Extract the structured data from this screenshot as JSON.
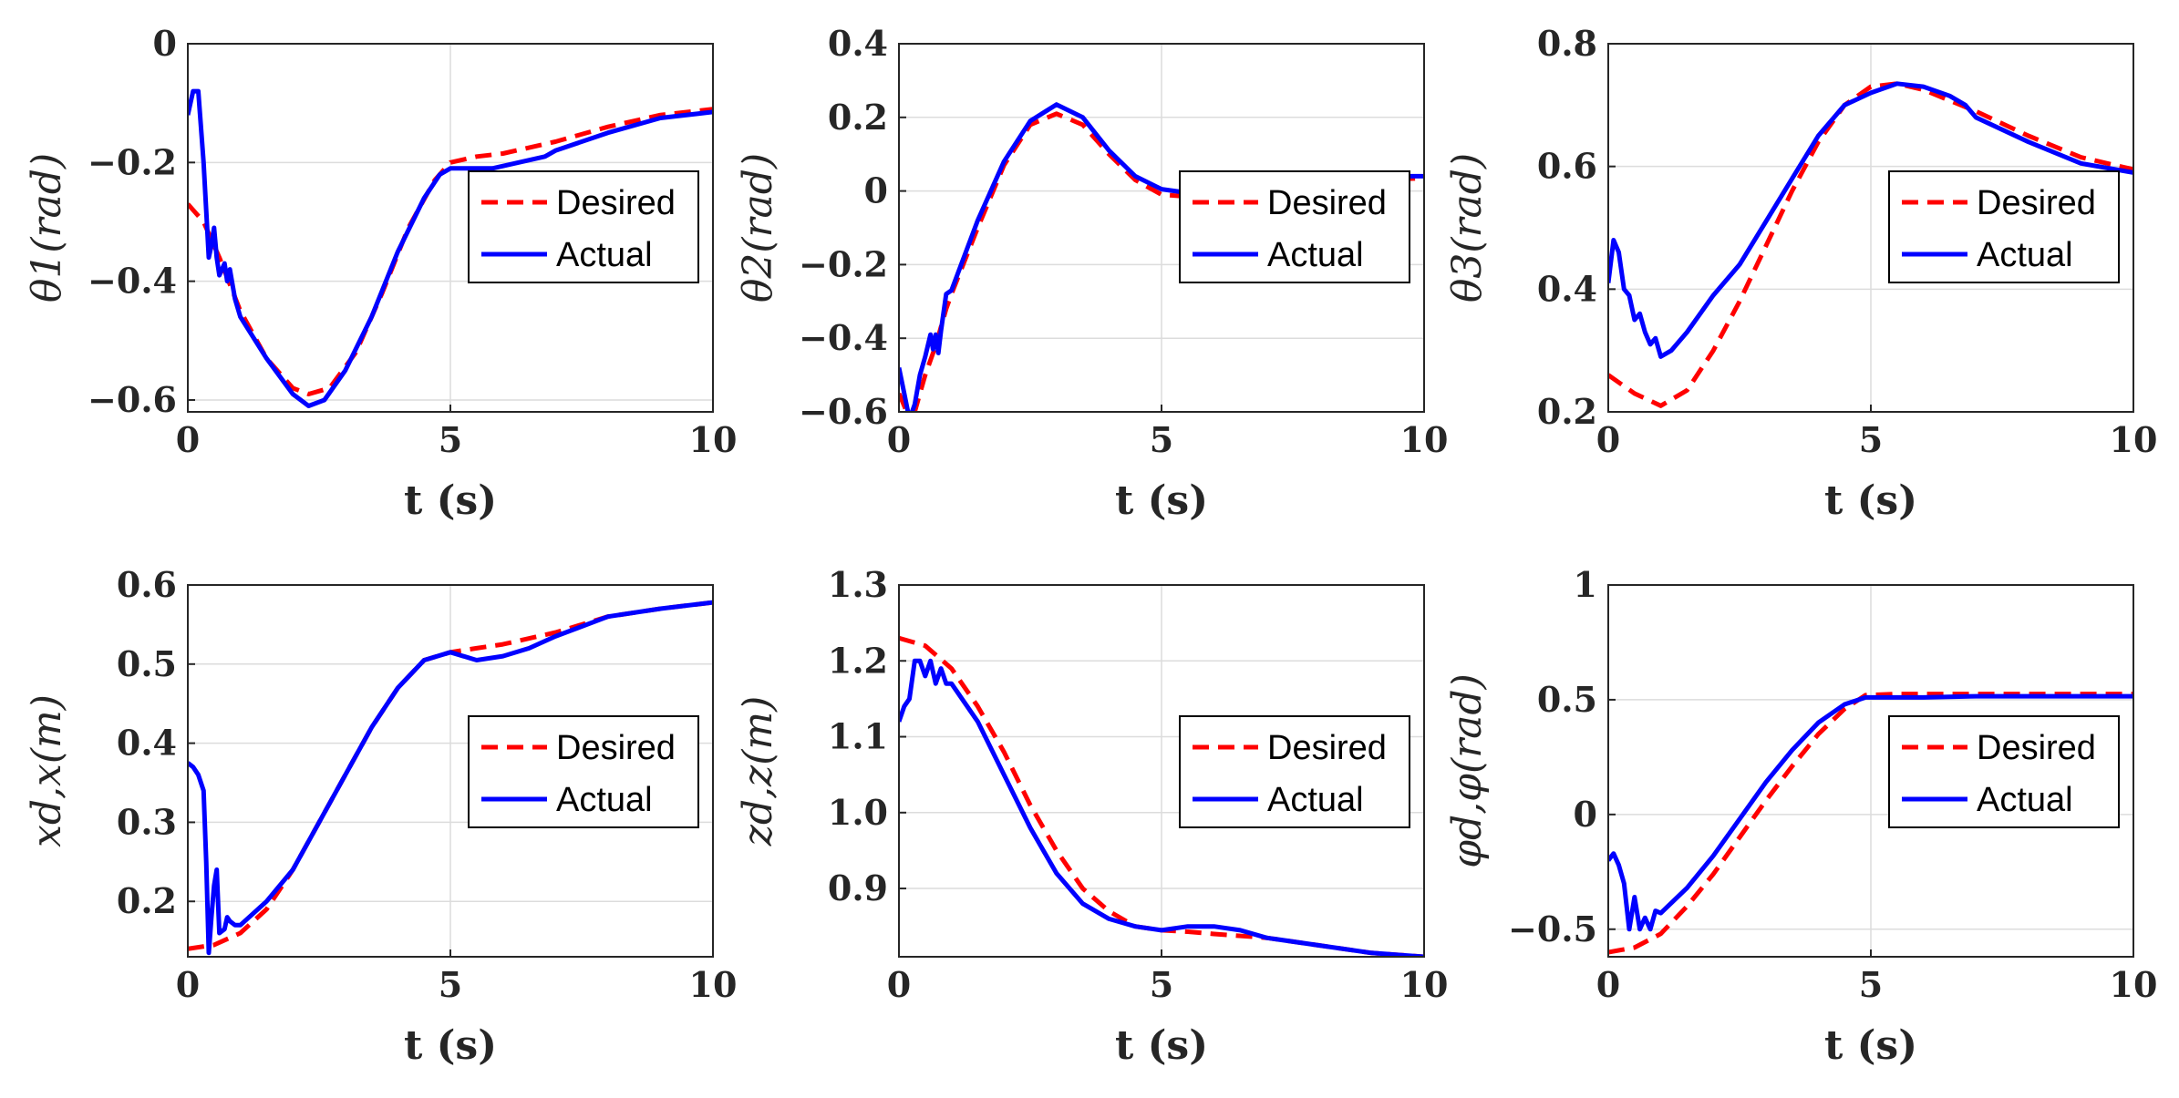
{
  "figure": {
    "legend_labels": [
      "Desired",
      "Actual"
    ],
    "colors": {
      "desired": "#ff0000",
      "actual": "#0000ff",
      "axis": "#262626",
      "grid": "#dcdcdc"
    }
  },
  "chart_data": [
    {
      "type": "line",
      "ylabel": "θ1(rad)",
      "xlabel": "t (s)",
      "xlim": [
        0,
        10
      ],
      "ylim": [
        -0.62,
        0
      ],
      "xticks": [
        0,
        5,
        10
      ],
      "yticks": [
        0,
        -0.2,
        -0.4,
        -0.6
      ],
      "ytick_labels": [
        "0",
        "−0.2",
        "−0.4",
        "−0.6"
      ],
      "xtick_labels": [
        "0",
        "5",
        "10"
      ],
      "legend": "upper-right",
      "series": [
        {
          "name": "Desired",
          "x": [
            0,
            0.3,
            0.6,
            1,
            1.5,
            2,
            2.3,
            2.7,
            3.2,
            3.7,
            4.2,
            4.7,
            5,
            5.5,
            6,
            7,
            8,
            9,
            10
          ],
          "y": [
            -0.27,
            -0.3,
            -0.36,
            -0.45,
            -0.53,
            -0.58,
            -0.59,
            -0.58,
            -0.52,
            -0.42,
            -0.31,
            -0.23,
            -0.2,
            -0.19,
            -0.185,
            -0.165,
            -0.14,
            -0.12,
            -0.11
          ]
        },
        {
          "name": "Actual",
          "x": [
            0,
            0.1,
            0.2,
            0.3,
            0.4,
            0.45,
            0.5,
            0.55,
            0.6,
            0.7,
            0.75,
            0.8,
            0.9,
            1,
            1.5,
            2,
            2.3,
            2.6,
            3,
            3.5,
            4,
            4.5,
            4.8,
            5,
            5.3,
            5.8,
            6.3,
            6.8,
            7,
            8,
            9,
            10
          ],
          "y": [
            -0.12,
            -0.08,
            -0.08,
            -0.2,
            -0.36,
            -0.34,
            -0.31,
            -0.36,
            -0.39,
            -0.37,
            -0.4,
            -0.38,
            -0.43,
            -0.46,
            -0.53,
            -0.59,
            -0.61,
            -0.6,
            -0.55,
            -0.46,
            -0.35,
            -0.26,
            -0.22,
            -0.21,
            -0.21,
            -0.21,
            -0.2,
            -0.19,
            -0.18,
            -0.15,
            -0.125,
            -0.115
          ]
        }
      ]
    },
    {
      "type": "line",
      "ylabel": "θ2(rad)",
      "xlabel": "t (s)",
      "xlim": [
        0,
        10
      ],
      "ylim": [
        -0.6,
        0.4
      ],
      "xticks": [
        0,
        5,
        10
      ],
      "yticks": [
        0.4,
        0.2,
        0,
        -0.2,
        -0.4,
        -0.6
      ],
      "ytick_labels": [
        "0.4",
        "0.2",
        "0",
        "−0.2",
        "−0.4",
        "−0.6"
      ],
      "xtick_labels": [
        "0",
        "5",
        "10"
      ],
      "legend": "lower-right",
      "series": [
        {
          "name": "Desired",
          "x": [
            0,
            0.15,
            0.3,
            0.5,
            0.7,
            0.9,
            1,
            1.5,
            2,
            2.5,
            3,
            3.5,
            4,
            4.5,
            5,
            5.5,
            6,
            7,
            8,
            9,
            10
          ],
          "y": [
            -0.55,
            -0.6,
            -0.6,
            -0.5,
            -0.42,
            -0.32,
            -0.28,
            -0.1,
            0.07,
            0.18,
            0.21,
            0.18,
            0.1,
            0.03,
            -0.01,
            -0.015,
            -0.01,
            0.01,
            0.02,
            0.03,
            0.035
          ]
        },
        {
          "name": "Actual",
          "x": [
            0,
            0.1,
            0.2,
            0.3,
            0.4,
            0.5,
            0.6,
            0.65,
            0.7,
            0.75,
            0.8,
            0.9,
            1,
            1.5,
            2,
            2.5,
            3,
            3.5,
            4,
            4.5,
            5,
            5.5,
            6,
            6.5,
            7,
            8,
            9,
            10
          ],
          "y": [
            -0.48,
            -0.55,
            -0.62,
            -0.58,
            -0.5,
            -0.45,
            -0.39,
            -0.43,
            -0.39,
            -0.44,
            -0.38,
            -0.28,
            -0.27,
            -0.08,
            0.08,
            0.19,
            0.235,
            0.2,
            0.11,
            0.04,
            0.005,
            -0.005,
            -0.005,
            0,
            0.02,
            0.03,
            0.04,
            0.04
          ]
        }
      ]
    },
    {
      "type": "line",
      "ylabel": "θ3(rad)",
      "xlabel": "t (s)",
      "xlim": [
        0,
        10
      ],
      "ylim": [
        0.2,
        0.8
      ],
      "xticks": [
        0,
        5,
        10
      ],
      "yticks": [
        0.8,
        0.6,
        0.4,
        0.2
      ],
      "ytick_labels": [
        "0.8",
        "0.6",
        "0.4",
        "0.2"
      ],
      "xtick_labels": [
        "0",
        "5",
        "10"
      ],
      "legend": "upper-right",
      "series": [
        {
          "name": "Desired",
          "x": [
            0,
            0.5,
            1,
            1.5,
            2,
            2.5,
            3,
            3.5,
            4,
            4.5,
            5,
            5.5,
            6,
            7,
            8,
            9,
            10
          ],
          "y": [
            0.26,
            0.23,
            0.21,
            0.235,
            0.3,
            0.38,
            0.47,
            0.56,
            0.64,
            0.7,
            0.73,
            0.735,
            0.725,
            0.69,
            0.65,
            0.615,
            0.595
          ]
        },
        {
          "name": "Actual",
          "x": [
            0,
            0.1,
            0.2,
            0.3,
            0.4,
            0.5,
            0.6,
            0.7,
            0.8,
            0.9,
            1,
            1.2,
            1.5,
            2,
            2.5,
            3,
            3.5,
            4,
            4.5,
            5,
            5.5,
            6,
            6.5,
            6.8,
            7,
            8,
            9,
            10
          ],
          "y": [
            0.41,
            0.48,
            0.46,
            0.4,
            0.39,
            0.35,
            0.36,
            0.33,
            0.31,
            0.32,
            0.29,
            0.3,
            0.33,
            0.39,
            0.44,
            0.51,
            0.58,
            0.65,
            0.7,
            0.72,
            0.735,
            0.73,
            0.715,
            0.7,
            0.68,
            0.64,
            0.605,
            0.59
          ]
        }
      ]
    },
    {
      "type": "line",
      "ylabel": "xd,x(m)",
      "xlabel": "t (s)",
      "xlim": [
        0,
        10
      ],
      "ylim": [
        0.13,
        0.6
      ],
      "xticks": [
        0,
        5,
        10
      ],
      "yticks": [
        0.6,
        0.5,
        0.4,
        0.3,
        0.2
      ],
      "ytick_labels": [
        "0.6",
        "0.5",
        "0.4",
        "0.3",
        "0.2"
      ],
      "xtick_labels": [
        "0",
        "5",
        "10"
      ],
      "legend": "lower-right",
      "series": [
        {
          "name": "Desired",
          "x": [
            0,
            0.5,
            1,
            1.5,
            2,
            2.5,
            3,
            3.5,
            4,
            4.5,
            5,
            5.5,
            6,
            7,
            8,
            9,
            10
          ],
          "y": [
            0.14,
            0.145,
            0.16,
            0.19,
            0.24,
            0.3,
            0.36,
            0.42,
            0.47,
            0.505,
            0.515,
            0.52,
            0.525,
            0.54,
            0.56,
            0.57,
            0.578
          ]
        },
        {
          "name": "Actual",
          "x": [
            0,
            0.1,
            0.2,
            0.3,
            0.35,
            0.4,
            0.45,
            0.5,
            0.55,
            0.6,
            0.7,
            0.75,
            0.8,
            0.9,
            1,
            1.5,
            2,
            2.5,
            3,
            3.5,
            4,
            4.5,
            5,
            5.5,
            6,
            6.5,
            7,
            8,
            9,
            10
          ],
          "y": [
            0.375,
            0.37,
            0.36,
            0.34,
            0.25,
            0.135,
            0.18,
            0.22,
            0.24,
            0.16,
            0.165,
            0.18,
            0.175,
            0.17,
            0.17,
            0.2,
            0.24,
            0.3,
            0.36,
            0.42,
            0.47,
            0.505,
            0.515,
            0.505,
            0.51,
            0.52,
            0.535,
            0.56,
            0.57,
            0.578
          ]
        }
      ]
    },
    {
      "type": "line",
      "ylabel": "zd,z(m)",
      "xlabel": "t (s)",
      "xlim": [
        0,
        10
      ],
      "ylim": [
        0.81,
        1.3
      ],
      "xticks": [
        0,
        5,
        10
      ],
      "yticks": [
        1.3,
        1.2,
        1.1,
        1.0,
        0.9
      ],
      "ytick_labels": [
        "1.3",
        "1.2",
        "1.1",
        "1.0",
        "0.9"
      ],
      "xtick_labels": [
        "0",
        "5",
        "10"
      ],
      "legend": "lower-right",
      "series": [
        {
          "name": "Desired",
          "x": [
            0,
            0.5,
            1,
            1.5,
            2,
            2.5,
            3,
            3.5,
            4,
            4.5,
            5,
            5.5,
            6,
            7,
            8,
            9,
            10
          ],
          "y": [
            1.23,
            1.22,
            1.19,
            1.14,
            1.08,
            1.01,
            0.95,
            0.9,
            0.87,
            0.85,
            0.845,
            0.843,
            0.84,
            0.835,
            0.825,
            0.815,
            0.81
          ]
        },
        {
          "name": "Actual",
          "x": [
            0,
            0.1,
            0.2,
            0.3,
            0.4,
            0.5,
            0.6,
            0.7,
            0.8,
            0.9,
            1,
            1.1,
            1.5,
            2,
            2.5,
            3,
            3.5,
            4,
            4.5,
            5,
            5.5,
            6,
            6.5,
            7,
            8,
            9,
            10
          ],
          "y": [
            1.12,
            1.14,
            1.15,
            1.2,
            1.2,
            1.18,
            1.2,
            1.17,
            1.19,
            1.17,
            1.17,
            1.16,
            1.12,
            1.05,
            0.98,
            0.92,
            0.88,
            0.86,
            0.85,
            0.845,
            0.85,
            0.85,
            0.845,
            0.835,
            0.825,
            0.815,
            0.81
          ]
        }
      ]
    },
    {
      "type": "line",
      "ylabel": "φd,φ(rad)",
      "xlabel": "t (s)",
      "xlim": [
        0,
        10
      ],
      "ylim": [
        -0.62,
        1
      ],
      "xticks": [
        0,
        5,
        10
      ],
      "yticks": [
        1,
        0.5,
        0,
        -0.5
      ],
      "ytick_labels": [
        "1",
        "0.5",
        "0",
        "−0.5"
      ],
      "xtick_labels": [
        "0",
        "5",
        "10"
      ],
      "legend": "lower-right",
      "series": [
        {
          "name": "Desired",
          "x": [
            0,
            0.5,
            1,
            1.5,
            2,
            2.5,
            3,
            3.5,
            4,
            4.5,
            4.9,
            5.5,
            6,
            7,
            8,
            9,
            10
          ],
          "y": [
            -0.6,
            -0.58,
            -0.52,
            -0.4,
            -0.26,
            -0.1,
            0.06,
            0.21,
            0.35,
            0.46,
            0.52,
            0.525,
            0.525,
            0.525,
            0.525,
            0.525,
            0.525
          ]
        },
        {
          "name": "Actual",
          "x": [
            0,
            0.1,
            0.2,
            0.3,
            0.4,
            0.5,
            0.6,
            0.7,
            0.8,
            0.9,
            1,
            1.5,
            2,
            2.5,
            3,
            3.5,
            4,
            4.5,
            4.9,
            5.5,
            6,
            7,
            8,
            9,
            10
          ],
          "y": [
            -0.2,
            -0.17,
            -0.22,
            -0.3,
            -0.5,
            -0.36,
            -0.5,
            -0.45,
            -0.5,
            -0.42,
            -0.43,
            -0.32,
            -0.18,
            -0.02,
            0.14,
            0.28,
            0.4,
            0.48,
            0.51,
            0.51,
            0.51,
            0.515,
            0.515,
            0.515,
            0.515
          ]
        }
      ]
    }
  ]
}
